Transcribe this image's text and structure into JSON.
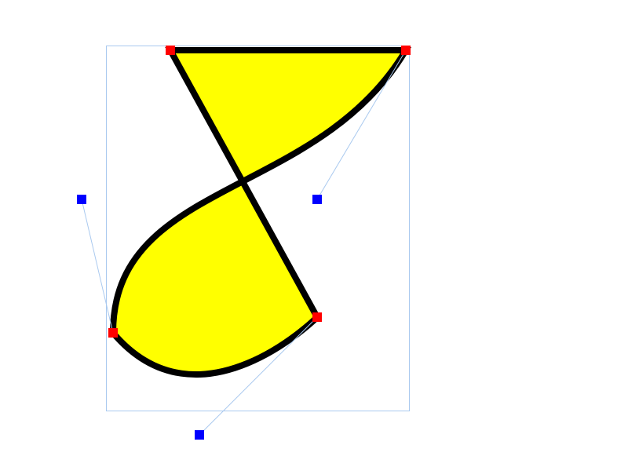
{
  "shape": {
    "fill_color": "#ffff00",
    "stroke_color": "#000000",
    "anchor_color": "#ff0000",
    "control_color": "#0000ff",
    "guide_color": "#a9c9ef"
  }
}
